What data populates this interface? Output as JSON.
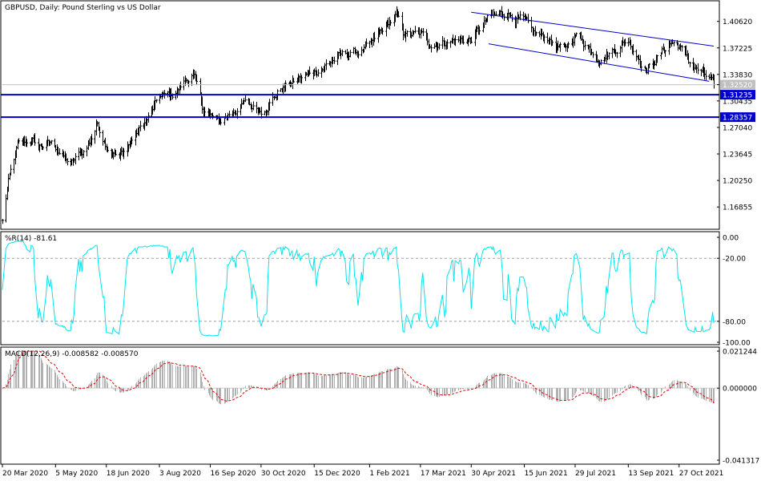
{
  "chart_title": "GBPUSD, Daily:  Pound Sterling vs US Dollar",
  "colors": {
    "background": "#ffffff",
    "grid": "#000000",
    "price_bars": "#000000",
    "levels": "#0000cc",
    "channel": "#0000cc",
    "current_price_line": "#c0c0c0",
    "williams_r": "#00e5ee",
    "macd_hist": "#b0b0b0",
    "macd_signal": "#dd0000"
  },
  "x_axis_labels": [
    "20 Mar 2020",
    "5 May 2020",
    "18 Jun 2020",
    "3 Aug 2020",
    "16 Sep 2020",
    "30 Oct 2020",
    "15 Dec 2020",
    "1 Feb 2021",
    "17 Mar 2021",
    "30 Apr 2021",
    "15 Jun 2021",
    "29 Jul 2021",
    "13 Sep 2021",
    "27 Oct 2021"
  ],
  "chart_data": [
    {
      "type": "line",
      "panel": "price",
      "title": "GBPUSD, Daily:  Pound Sterling vs US Dollar",
      "y_ticks": [
        "1.40620",
        "1.37225",
        "1.33830",
        "1.30435",
        "1.27040",
        "1.23645",
        "1.20250",
        "1.16855"
      ],
      "ylim": [
        1.142,
        1.4295
      ],
      "series_style": "daily bars",
      "price_anchors": [
        {
          "date": "20 Mar 2020",
          "value": 1.15
        },
        {
          "date": "25 Mar 2020",
          "value": 1.2
        },
        {
          "date": "2 Apr 2020",
          "value": 1.245
        },
        {
          "date": "14 Apr 2020",
          "value": 1.255
        },
        {
          "date": "20 Apr 2020",
          "value": 1.245
        },
        {
          "date": "30 Apr 2020",
          "value": 1.25
        },
        {
          "date": "5 May 2020",
          "value": 1.245
        },
        {
          "date": "18 May 2020",
          "value": 1.222
        },
        {
          "date": "1 Jun 2020",
          "value": 1.245
        },
        {
          "date": "10 Jun 2020",
          "value": 1.275
        },
        {
          "date": "18 Jun 2020",
          "value": 1.25
        },
        {
          "date": "29 Jun 2020",
          "value": 1.232
        },
        {
          "date": "10 Jul 2020",
          "value": 1.255
        },
        {
          "date": "24 Jul 2020",
          "value": 1.282
        },
        {
          "date": "3 Aug 2020",
          "value": 1.308
        },
        {
          "date": "14 Aug 2020",
          "value": 1.312
        },
        {
          "date": "1 Sep 2020",
          "value": 1.34
        },
        {
          "date": "9 Sep 2020",
          "value": 1.295
        },
        {
          "date": "16 Sep 2020",
          "value": 1.285
        },
        {
          "date": "23 Sep 2020",
          "value": 1.275
        },
        {
          "date": "5 Oct 2020",
          "value": 1.292
        },
        {
          "date": "15 Oct 2020",
          "value": 1.3
        },
        {
          "date": "30 Oct 2020",
          "value": 1.293
        },
        {
          "date": "16 Nov 2020",
          "value": 1.32
        },
        {
          "date": "15 Dec 2020",
          "value": 1.342
        },
        {
          "date": "4 Jan 2021",
          "value": 1.36
        },
        {
          "date": "18 Jan 2021",
          "value": 1.366
        },
        {
          "date": "1 Feb 2021",
          "value": 1.372
        },
        {
          "date": "15 Feb 2021",
          "value": 1.4
        },
        {
          "date": "24 Feb 2021",
          "value": 1.413
        },
        {
          "date": "2 Mar 2021",
          "value": 1.39
        },
        {
          "date": "17 Mar 2021",
          "value": 1.388
        },
        {
          "date": "26 Mar 2021",
          "value": 1.378
        },
        {
          "date": "12 Apr 2021",
          "value": 1.382
        },
        {
          "date": "30 Apr 2021",
          "value": 1.383
        },
        {
          "date": "14 May 2021",
          "value": 1.408
        },
        {
          "date": "1 Jun 2021",
          "value": 1.418
        },
        {
          "date": "15 Jun 2021",
          "value": 1.405
        },
        {
          "date": "21 Jun 2021",
          "value": 1.39
        },
        {
          "date": "6 Jul 2021",
          "value": 1.384
        },
        {
          "date": "20 Jul 2021",
          "value": 1.367
        },
        {
          "date": "29 Jul 2021",
          "value": 1.39
        },
        {
          "date": "20 Aug 2021",
          "value": 1.36
        },
        {
          "date": "13 Sep 2021",
          "value": 1.383
        },
        {
          "date": "29 Sep 2021",
          "value": 1.345
        },
        {
          "date": "20 Oct 2021",
          "value": 1.38
        },
        {
          "date": "27 Oct 2021",
          "value": 1.375
        },
        {
          "date": "4 Nov 2021",
          "value": 1.355
        },
        {
          "date": "26 Nov 2021",
          "value": 1.3252
        }
      ],
      "current_price": 1.3252,
      "current_price_label": "1.32520",
      "horizontal_levels": [
        {
          "value": 1.31235,
          "label": "1.31235"
        },
        {
          "value": 1.28357,
          "label": "1.28357"
        }
      ],
      "channel_lines": [
        {
          "name": "upper",
          "from": {
            "date": "30 Apr 2021",
            "value": 1.418
          },
          "to": {
            "date": "26 Nov 2021",
            "value": 1.3745
          }
        },
        {
          "name": "lower",
          "from": {
            "date": "15 May 2021",
            "value": 1.3775
          },
          "to": {
            "date": "22 Nov 2021",
            "value": 1.3295
          }
        }
      ]
    },
    {
      "type": "line",
      "panel": "williams_r",
      "title": "%R(14) -81.61",
      "y_ticks": [
        "0.00",
        "-20.00",
        "-80.00",
        "-100.00"
      ],
      "ylim": [
        -100,
        0
      ],
      "levels": [
        -20,
        -80
      ],
      "last_value": -81.61
    },
    {
      "type": "bar",
      "panel": "macd",
      "title": "MACD(12,26,9) -0.008582 -0.008570",
      "y_ticks": [
        "0.021244",
        "0.000000",
        "-0.041317"
      ],
      "ylim": [
        -0.041317,
        0.021244
      ],
      "macd_last": -0.008582,
      "signal_last": -0.00857,
      "series": [
        {
          "name": "MACD"
        },
        {
          "name": "Signal"
        }
      ]
    }
  ]
}
